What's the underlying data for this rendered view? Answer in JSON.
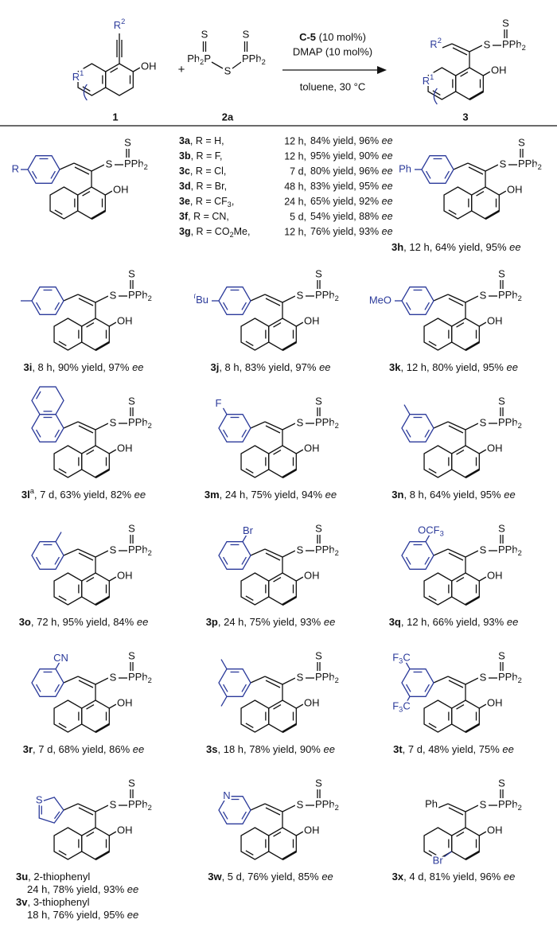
{
  "labels": {
    "S": "S",
    "PPh2": [
      {
        "t": "PPh"
      },
      {
        "t": "2",
        "sub": true
      }
    ],
    "OH": "OH"
  },
  "header": {
    "reactant": {
      "R2": [
        {
          "t": "R"
        },
        {
          "t": "2",
          "sup": true
        }
      ],
      "R1": [
        {
          "t": "R"
        },
        {
          "t": "1",
          "sup": true
        }
      ],
      "label": "1"
    },
    "plus": "+",
    "reagent": {
      "left": [
        {
          "t": "Ph"
        },
        {
          "t": "2",
          "sub": true
        },
        {
          "t": "P"
        }
      ],
      "label": "2a"
    },
    "conditions": {
      "catalyst": [
        {
          "t": "C-5",
          "b": true
        },
        {
          "t": " (10 mol%)"
        }
      ],
      "additive": "DMAP (10 mol%)",
      "solvent": "toluene, 30 °C"
    },
    "product": {
      "R2": [
        {
          "t": "R"
        },
        {
          "t": "2",
          "sup": true
        }
      ],
      "R1": [
        {
          "t": "R"
        },
        {
          "t": "1",
          "sup": true
        }
      ],
      "label": "3"
    }
  },
  "block": {
    "R": "R",
    "rows": [
      {
        "compound": [
          {
            "t": "3a",
            "b": true
          },
          {
            "t": ", R = H,"
          }
        ],
        "time": "12 h,",
        "result": [
          {
            "t": "84% yield, 96% "
          },
          {
            "t": "ee",
            "i": true
          }
        ]
      },
      {
        "compound": [
          {
            "t": "3b",
            "b": true
          },
          {
            "t": ", R = F,"
          }
        ],
        "time": "12 h,",
        "result": [
          {
            "t": "95% yield, 90% "
          },
          {
            "t": "ee",
            "i": true
          }
        ]
      },
      {
        "compound": [
          {
            "t": "3c",
            "b": true
          },
          {
            "t": ", R = Cl,"
          }
        ],
        "time": "7 d,",
        "result": [
          {
            "t": "80% yield, 96% "
          },
          {
            "t": "ee",
            "i": true
          }
        ]
      },
      {
        "compound": [
          {
            "t": "3d",
            "b": true
          },
          {
            "t": ", R = Br,"
          }
        ],
        "time": "48 h,",
        "result": [
          {
            "t": "83% yield, 95% "
          },
          {
            "t": "ee",
            "i": true
          }
        ]
      },
      {
        "compound": [
          {
            "t": "3e",
            "b": true
          },
          {
            "t": ", R = CF"
          },
          {
            "t": "3",
            "sub": true
          },
          {
            "t": ","
          }
        ],
        "time": "24 h,",
        "result": [
          {
            "t": "65% yield, 92% "
          },
          {
            "t": "ee",
            "i": true
          }
        ]
      },
      {
        "compound": [
          {
            "t": "3f",
            "b": true
          },
          {
            "t": ", R = CN,"
          }
        ],
        "time": "5 d,",
        "result": [
          {
            "t": "54% yield, 88% "
          },
          {
            "t": "ee",
            "i": true
          }
        ]
      },
      {
        "compound": [
          {
            "t": "3g",
            "b": true
          },
          {
            "t": ", R = CO"
          },
          {
            "t": "2",
            "sub": true
          },
          {
            "t": "Me,"
          }
        ],
        "time": "12 h,",
        "result": [
          {
            "t": "76% yield, 93% "
          },
          {
            "t": "ee",
            "i": true
          }
        ]
      }
    ]
  },
  "products": [
    {
      "aryl": "phenyl",
      "subs": [
        {
          "pos": "para",
          "text": "Ph"
        }
      ],
      "caption": [
        [
          {
            "t": "3h",
            "b": true
          },
          {
            "t": ", 12 h, 64% yield, 95% "
          },
          {
            "t": "ee",
            "i": true
          }
        ]
      ]
    },
    {
      "aryl": "phenyl",
      "methyl": [
        "para"
      ],
      "caption": [
        [
          {
            "t": "3i",
            "b": true
          },
          {
            "t": ", 8 h, 90% yield, 97% "
          },
          {
            "t": "ee",
            "i": true
          }
        ]
      ]
    },
    {
      "aryl": "phenyl",
      "subs": [
        {
          "pos": "para",
          "text": [
            {
              "t": "t",
              "sup": true,
              "i": true
            },
            {
              "t": "Bu"
            }
          ]
        }
      ],
      "caption": [
        [
          {
            "t": "3j",
            "b": true
          },
          {
            "t": ", 8 h, 83% yield, 97% "
          },
          {
            "t": "ee",
            "i": true
          }
        ]
      ]
    },
    {
      "aryl": "phenyl",
      "subs": [
        {
          "pos": "para",
          "text": "MeO"
        }
      ],
      "caption": [
        [
          {
            "t": "3k",
            "b": true
          },
          {
            "t": ", 12 h, 80% yield, 95% "
          },
          {
            "t": "ee",
            "i": true
          }
        ]
      ]
    },
    {
      "aryl": "naphthyl",
      "caption": [
        [
          {
            "t": "3l",
            "b": true
          },
          {
            "t": "a",
            "sup": true
          },
          {
            "t": ", 7 d, 63% yield, 82% "
          },
          {
            "t": "ee",
            "i": true
          }
        ]
      ]
    },
    {
      "aryl": "phenyl",
      "subs": [
        {
          "pos": "meta",
          "text": "F"
        }
      ],
      "caption": [
        [
          {
            "t": "3m",
            "b": true
          },
          {
            "t": ", 24 h, 75% yield, 94% "
          },
          {
            "t": "ee",
            "i": true
          }
        ]
      ]
    },
    {
      "aryl": "phenyl",
      "methyl": [
        "meta"
      ],
      "caption": [
        [
          {
            "t": "3n",
            "b": true
          },
          {
            "t": ", 8 h, 64% yield, 95% "
          },
          {
            "t": "ee",
            "i": true
          }
        ]
      ]
    },
    {
      "aryl": "phenyl",
      "methyl": [
        "ortho"
      ],
      "caption": [
        [
          {
            "t": "3o",
            "b": true
          },
          {
            "t": ", 72 h, 95% yield, 84% "
          },
          {
            "t": "ee",
            "i": true
          }
        ]
      ]
    },
    {
      "aryl": "phenyl",
      "subs": [
        {
          "pos": "ortho",
          "text": "Br"
        }
      ],
      "caption": [
        [
          {
            "t": "3p",
            "b": true
          },
          {
            "t": ", 24 h, 75% yield, 93% "
          },
          {
            "t": "ee",
            "i": true
          }
        ]
      ]
    },
    {
      "aryl": "phenyl",
      "subs": [
        {
          "pos": "ortho",
          "text": [
            {
              "t": "OCF"
            },
            {
              "t": "3",
              "sub": true
            }
          ]
        }
      ],
      "caption": [
        [
          {
            "t": "3q",
            "b": true
          },
          {
            "t": ", 12 h, 66% yield, 93% "
          },
          {
            "t": "ee",
            "i": true
          }
        ]
      ]
    },
    {
      "aryl": "phenyl",
      "subs": [
        {
          "pos": "ortho",
          "text": "CN"
        }
      ],
      "caption": [
        [
          {
            "t": "3r",
            "b": true
          },
          {
            "t": ", 7 d, 68% yield, 86% "
          },
          {
            "t": "ee",
            "i": true
          }
        ]
      ]
    },
    {
      "aryl": "phenyl",
      "methyl": [
        "meta",
        "meta-bottom"
      ],
      "caption": [
        [
          {
            "t": "3s",
            "b": true
          },
          {
            "t": ", 18 h, 78% yield, 90% "
          },
          {
            "t": "ee",
            "i": true
          }
        ]
      ]
    },
    {
      "aryl": "phenyl",
      "subs": [
        {
          "pos": "meta",
          "text": [
            {
              "t": "F"
            },
            {
              "t": "3",
              "sub": true
            },
            {
              "t": "C"
            }
          ]
        },
        {
          "pos": "meta-bottom",
          "text": [
            {
              "t": "F"
            },
            {
              "t": "3",
              "sub": true
            },
            {
              "t": "C"
            }
          ]
        }
      ],
      "caption": [
        [
          {
            "t": "3t",
            "b": true
          },
          {
            "t": ", 7 d, 48% yield, 75% "
          },
          {
            "t": "ee",
            "i": true
          }
        ]
      ]
    },
    {
      "aryl": "thienyl",
      "subs": [
        {
          "pos": "hetero",
          "text": "S"
        }
      ],
      "caption": [
        [
          {
            "t": "3u",
            "b": true
          },
          {
            "t": ", 2-thiophenyl"
          }
        ],
        [
          {
            "t": "24 h, 78% yield, 93% "
          },
          {
            "t": "ee",
            "i": true
          }
        ],
        [
          {
            "t": "3v",
            "b": true
          },
          {
            "t": ", 3-thiophenyl"
          }
        ],
        [
          {
            "t": "18 h, 76% yield, 95% "
          },
          {
            "t": "ee",
            "i": true
          }
        ]
      ]
    },
    {
      "aryl": "pyridyl",
      "subs": [
        {
          "pos": "hetero",
          "text": "N"
        }
      ],
      "caption": [
        [
          {
            "t": "3w",
            "b": true
          },
          {
            "t": ", 5 d, 76% yield, 85% "
          },
          {
            "t": "ee",
            "i": true
          }
        ]
      ]
    },
    {
      "aryl": "none",
      "vinyl_sub": "Ph",
      "naph_sub": "Br",
      "caption": [
        [
          {
            "t": "3x",
            "b": true
          },
          {
            "t": ", 4 d, 81% yield, 96% "
          },
          {
            "t": "ee",
            "i": true
          }
        ]
      ]
    }
  ]
}
